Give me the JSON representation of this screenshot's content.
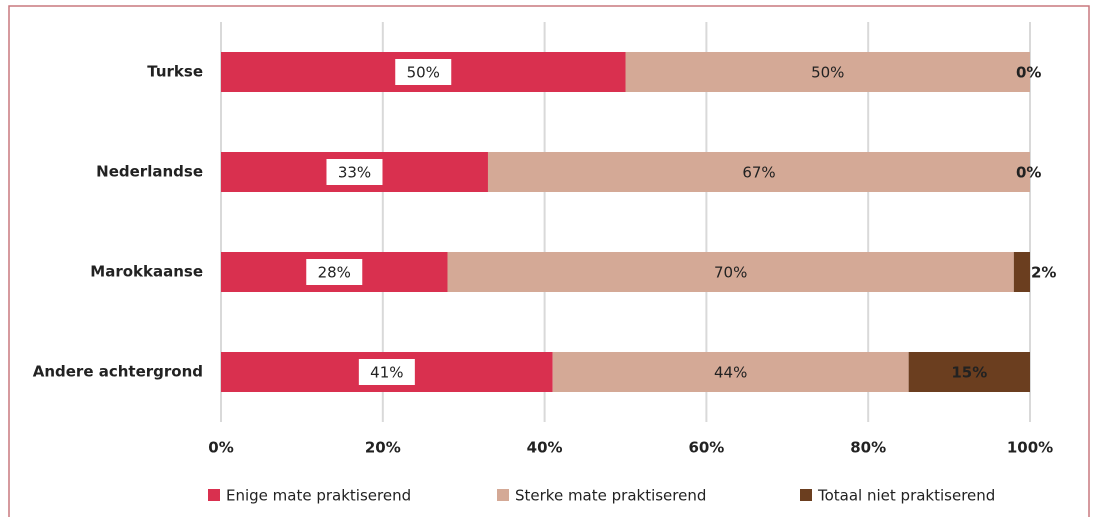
{
  "chart_data": {
    "type": "stacked-bar-horizontal",
    "categories": [
      "Turkse",
      "Nederlandse",
      "Marokkaanse",
      "Andere achtergrond"
    ],
    "series": [
      {
        "name": "Enige mate praktiserend",
        "color": "#d9304f",
        "values": [
          50,
          33,
          28,
          41
        ],
        "value_labels": [
          "50%",
          "33%",
          "28%",
          "41%"
        ]
      },
      {
        "name": "Sterke mate praktiserend",
        "color": "#d4a996",
        "values": [
          50,
          67,
          70,
          44
        ],
        "value_labels": [
          "50%",
          "67%",
          "70%",
          "44%"
        ]
      },
      {
        "name": "Totaal niet praktiserend",
        "color": "#6b3e1f",
        "values": [
          0,
          0,
          2,
          15
        ],
        "value_labels": [
          "0%",
          "0%",
          "2%",
          "15%"
        ]
      }
    ],
    "xlim": [
      0,
      100
    ],
    "xticks": [
      {
        "value": 0,
        "label": "0%"
      },
      {
        "value": 20,
        "label": "20%"
      },
      {
        "value": 40,
        "label": "40%"
      },
      {
        "value": 60,
        "label": "60%"
      },
      {
        "value": 80,
        "label": "80%"
      },
      {
        "value": 100,
        "label": "100%"
      }
    ],
    "grid": true,
    "legend": "bottom"
  }
}
